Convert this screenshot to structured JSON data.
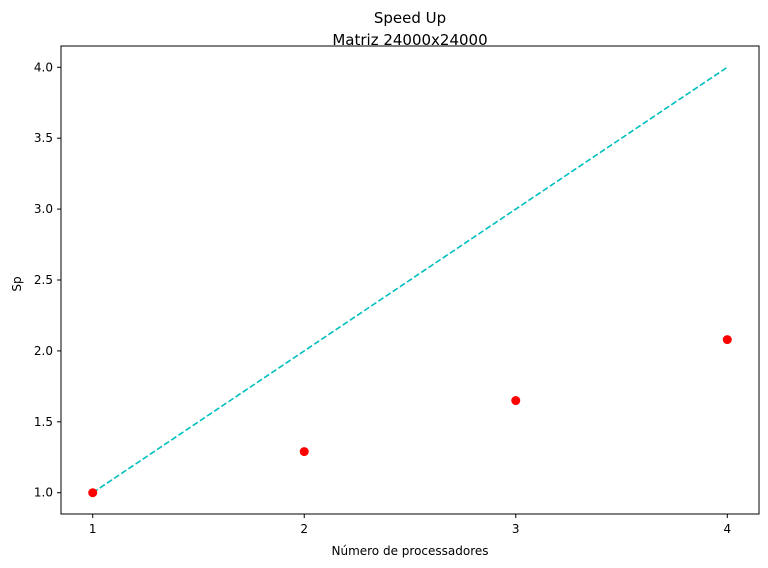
{
  "chart_data": {
    "type": "scatter",
    "title": "Speed Up",
    "subtitle": "Matriz 24000x24000",
    "xlabel": "Número de processadores",
    "ylabel": "Sp",
    "xlim": [
      0.85,
      4.15
    ],
    "ylim": [
      0.85,
      4.15
    ],
    "xticks": [
      1,
      2,
      3,
      4
    ],
    "yticks": [
      1.0,
      1.5,
      2.0,
      2.5,
      3.0,
      3.5,
      4.0
    ],
    "xtick_labels": [
      "1",
      "2",
      "3",
      "4"
    ],
    "ytick_labels": [
      "1.0",
      "1.5",
      "2.0",
      "2.5",
      "3.0",
      "3.5",
      "4.0"
    ],
    "grid": false,
    "series": [
      {
        "kind": "points",
        "color": "#ff0000",
        "x": [
          1,
          2,
          3,
          4
        ],
        "y": [
          1.0,
          1.29,
          1.65,
          2.08
        ]
      },
      {
        "kind": "dashed-line",
        "color": "#00bfbf",
        "x": [
          1,
          4
        ],
        "y": [
          1.0,
          4.0
        ]
      }
    ]
  }
}
